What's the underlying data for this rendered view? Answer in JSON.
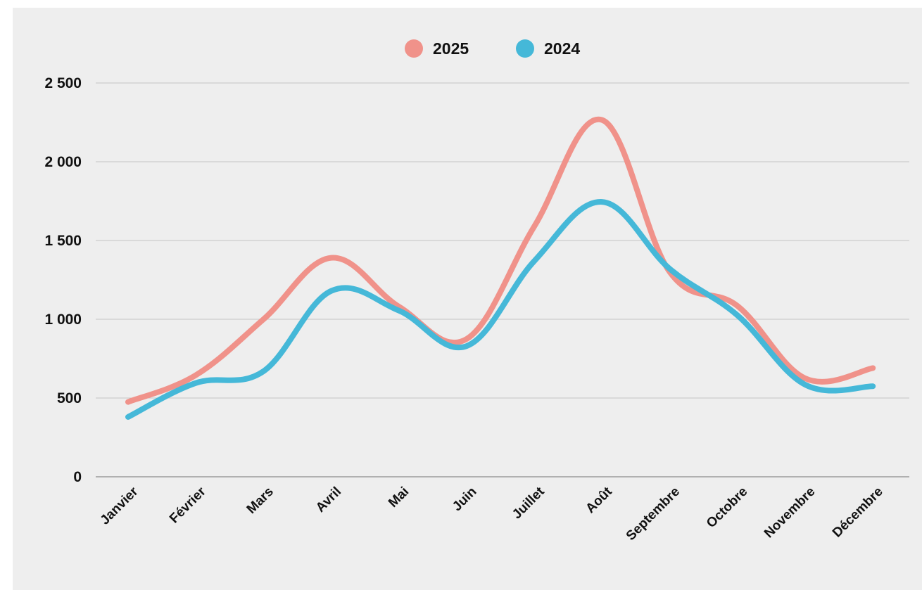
{
  "chart_data": {
    "type": "line",
    "title": "",
    "xlabel": "",
    "ylabel": "",
    "categories": [
      "Janvier",
      "Février",
      "Mars",
      "Avril",
      "Mai",
      "Juin",
      "Juillet",
      "Août",
      "Septembre",
      "Octobre",
      "Novembre",
      "Décembre"
    ],
    "series": [
      {
        "name": "2025",
        "color": "#f0928a",
        "values": [
          475,
          645,
          1000,
          1390,
          1080,
          875,
          1590,
          2265,
          1300,
          1085,
          625,
          690
        ]
      },
      {
        "name": "2024",
        "color": "#45b8d8",
        "values": [
          380,
          595,
          670,
          1180,
          1055,
          830,
          1370,
          1745,
          1320,
          1025,
          585,
          575
        ]
      }
    ],
    "ylim": [
      0,
      2500
    ],
    "yticks": [
      0,
      500,
      1000,
      1500,
      2000,
      2500
    ],
    "ytick_labels": [
      "0",
      "500",
      "1 000",
      "1 500",
      "2 000",
      "2 500"
    ],
    "grid": true,
    "legend_position": "top-center",
    "background": "#eeeeee"
  }
}
